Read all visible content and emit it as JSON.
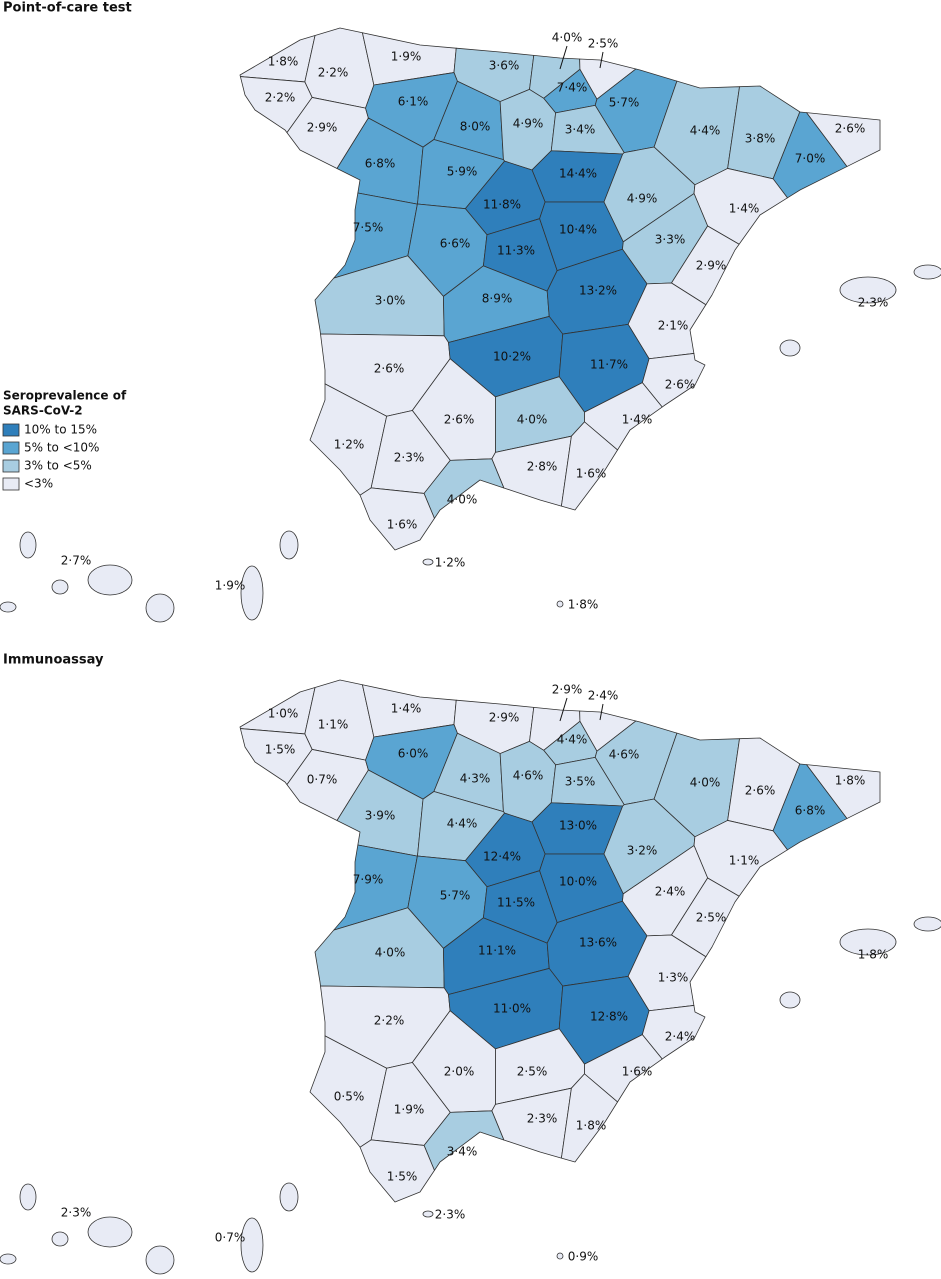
{
  "legend": {
    "title_lines": [
      "Seroprevalence of",
      "SARS-CoV-2"
    ],
    "items": [
      {
        "label": "10% to 15%",
        "color": "#2f7fbb"
      },
      {
        "label": "5% to <10%",
        "color": "#5aa5d2"
      },
      {
        "label": "3% to <5%",
        "color": "#a8cde1"
      },
      {
        "label": "<3%",
        "color": "#e8ebf5"
      }
    ]
  },
  "maps": [
    {
      "title": "Point-of-care test",
      "regions": [
        {
          "label": "1·8%",
          "color": "#e8ebf5"
        },
        {
          "label": "2·2%",
          "color": "#e8ebf5"
        },
        {
          "label": "1·9%",
          "color": "#e8ebf5"
        },
        {
          "label": "3·6%",
          "color": "#a8cde1"
        },
        {
          "label": "4·0%",
          "color": "#a8cde1"
        },
        {
          "label": "2·5%",
          "color": "#e8ebf5"
        },
        {
          "label": "7·4%",
          "color": "#5aa5d2"
        },
        {
          "label": "5·7%",
          "color": "#5aa5d2"
        },
        {
          "label": "2·2%",
          "color": "#e8ebf5"
        },
        {
          "label": "2·9%",
          "color": "#e8ebf5"
        },
        {
          "label": "6·1%",
          "color": "#5aa5d2"
        },
        {
          "label": "8·0%",
          "color": "#5aa5d2"
        },
        {
          "label": "4·9%",
          "color": "#a8cde1"
        },
        {
          "label": "3·4%",
          "color": "#a8cde1"
        },
        {
          "label": "4·4%",
          "color": "#a8cde1"
        },
        {
          "label": "3·8%",
          "color": "#a8cde1"
        },
        {
          "label": "2·6%",
          "color": "#e8ebf5"
        },
        {
          "label": "6·8%",
          "color": "#5aa5d2"
        },
        {
          "label": "5·9%",
          "color": "#5aa5d2"
        },
        {
          "label": "14·4%",
          "color": "#2f7fbb"
        },
        {
          "label": "4·9%",
          "color": "#a8cde1"
        },
        {
          "label": "7·0%",
          "color": "#5aa5d2"
        },
        {
          "label": "11·8%",
          "color": "#2f7fbb"
        },
        {
          "label": "1·4%",
          "color": "#e8ebf5"
        },
        {
          "label": "7·5%",
          "color": "#5aa5d2"
        },
        {
          "label": "6·6%",
          "color": "#5aa5d2"
        },
        {
          "label": "11·3%",
          "color": "#2f7fbb"
        },
        {
          "label": "10·4%",
          "color": "#2f7fbb"
        },
        {
          "label": "3·3%",
          "color": "#a8cde1"
        },
        {
          "label": "2·9%",
          "color": "#e8ebf5"
        },
        {
          "label": "3·0%",
          "color": "#a8cde1"
        },
        {
          "label": "8·9%",
          "color": "#5aa5d2"
        },
        {
          "label": "13·2%",
          "color": "#2f7fbb"
        },
        {
          "label": "2·1%",
          "color": "#e8ebf5"
        },
        {
          "label": "2·3%",
          "color": "#e8ebf5"
        },
        {
          "label": "2·6%",
          "color": "#e8ebf5"
        },
        {
          "label": "10·2%",
          "color": "#2f7fbb"
        },
        {
          "label": "11·7%",
          "color": "#2f7fbb"
        },
        {
          "label": "2·6%",
          "color": "#e8ebf5"
        },
        {
          "label": "1·2%",
          "color": "#e8ebf5"
        },
        {
          "label": "2·6%",
          "color": "#e8ebf5"
        },
        {
          "label": "4·0%",
          "color": "#a8cde1"
        },
        {
          "label": "1·4%",
          "color": "#e8ebf5"
        },
        {
          "label": "2·3%",
          "color": "#e8ebf5"
        },
        {
          "label": "2·8%",
          "color": "#e8ebf5"
        },
        {
          "label": "1·6%",
          "color": "#e8ebf5"
        },
        {
          "label": "4·0%",
          "color": "#a8cde1"
        },
        {
          "label": "1·6%",
          "color": "#e8ebf5"
        },
        {
          "label": "1·2%",
          "color": "#e8ebf5"
        },
        {
          "label": "2·7%",
          "color": "#e8ebf5"
        },
        {
          "label": "1·9%",
          "color": "#e8ebf5"
        },
        {
          "label": "1·8%",
          "color": "#e8ebf5"
        }
      ]
    },
    {
      "title": "Immunoassay",
      "regions": [
        {
          "label": "1·0%",
          "color": "#e8ebf5"
        },
        {
          "label": "1·1%",
          "color": "#e8ebf5"
        },
        {
          "label": "1·4%",
          "color": "#e8ebf5"
        },
        {
          "label": "2·9%",
          "color": "#e8ebf5"
        },
        {
          "label": "2·9%",
          "color": "#e8ebf5"
        },
        {
          "label": "2·4%",
          "color": "#e8ebf5"
        },
        {
          "label": "4·4%",
          "color": "#a8cde1"
        },
        {
          "label": "4·6%",
          "color": "#a8cde1"
        },
        {
          "label": "1·5%",
          "color": "#e8ebf5"
        },
        {
          "label": "0·7%",
          "color": "#e8ebf5"
        },
        {
          "label": "6·0%",
          "color": "#5aa5d2"
        },
        {
          "label": "4·3%",
          "color": "#a8cde1"
        },
        {
          "label": "4·6%",
          "color": "#a8cde1"
        },
        {
          "label": "3·5%",
          "color": "#a8cde1"
        },
        {
          "label": "4·0%",
          "color": "#a8cde1"
        },
        {
          "label": "2·6%",
          "color": "#e8ebf5"
        },
        {
          "label": "1·8%",
          "color": "#e8ebf5"
        },
        {
          "label": "3·9%",
          "color": "#a8cde1"
        },
        {
          "label": "4·4%",
          "color": "#a8cde1"
        },
        {
          "label": "13·0%",
          "color": "#2f7fbb"
        },
        {
          "label": "3·2%",
          "color": "#a8cde1"
        },
        {
          "label": "6·8%",
          "color": "#5aa5d2"
        },
        {
          "label": "12·4%",
          "color": "#2f7fbb"
        },
        {
          "label": "1·1%",
          "color": "#e8ebf5"
        },
        {
          "label": "7·9%",
          "color": "#5aa5d2"
        },
        {
          "label": "5·7%",
          "color": "#5aa5d2"
        },
        {
          "label": "11·5%",
          "color": "#2f7fbb"
        },
        {
          "label": "10·0%",
          "color": "#2f7fbb"
        },
        {
          "label": "2·4%",
          "color": "#e8ebf5"
        },
        {
          "label": "2·5%",
          "color": "#e8ebf5"
        },
        {
          "label": "4·0%",
          "color": "#a8cde1"
        },
        {
          "label": "11·1%",
          "color": "#2f7fbb"
        },
        {
          "label": "13·6%",
          "color": "#2f7fbb"
        },
        {
          "label": "1·3%",
          "color": "#e8ebf5"
        },
        {
          "label": "1·8%",
          "color": "#e8ebf5"
        },
        {
          "label": "2·2%",
          "color": "#e8ebf5"
        },
        {
          "label": "11·0%",
          "color": "#2f7fbb"
        },
        {
          "label": "12·8%",
          "color": "#2f7fbb"
        },
        {
          "label": "2·4%",
          "color": "#e8ebf5"
        },
        {
          "label": "0·5%",
          "color": "#e8ebf5"
        },
        {
          "label": "2·0%",
          "color": "#e8ebf5"
        },
        {
          "label": "2·5%",
          "color": "#e8ebf5"
        },
        {
          "label": "1·6%",
          "color": "#e8ebf5"
        },
        {
          "label": "1·9%",
          "color": "#e8ebf5"
        },
        {
          "label": "2·3%",
          "color": "#e8ebf5"
        },
        {
          "label": "1·8%",
          "color": "#e8ebf5"
        },
        {
          "label": "3·4%",
          "color": "#a8cde1"
        },
        {
          "label": "1·5%",
          "color": "#e8ebf5"
        },
        {
          "label": "2·3%",
          "color": "#e8ebf5"
        },
        {
          "label": "2·3%",
          "color": "#e8ebf5"
        },
        {
          "label": "0·7%",
          "color": "#e8ebf5"
        },
        {
          "label": "0·9%",
          "color": "#e8ebf5"
        }
      ]
    }
  ]
}
